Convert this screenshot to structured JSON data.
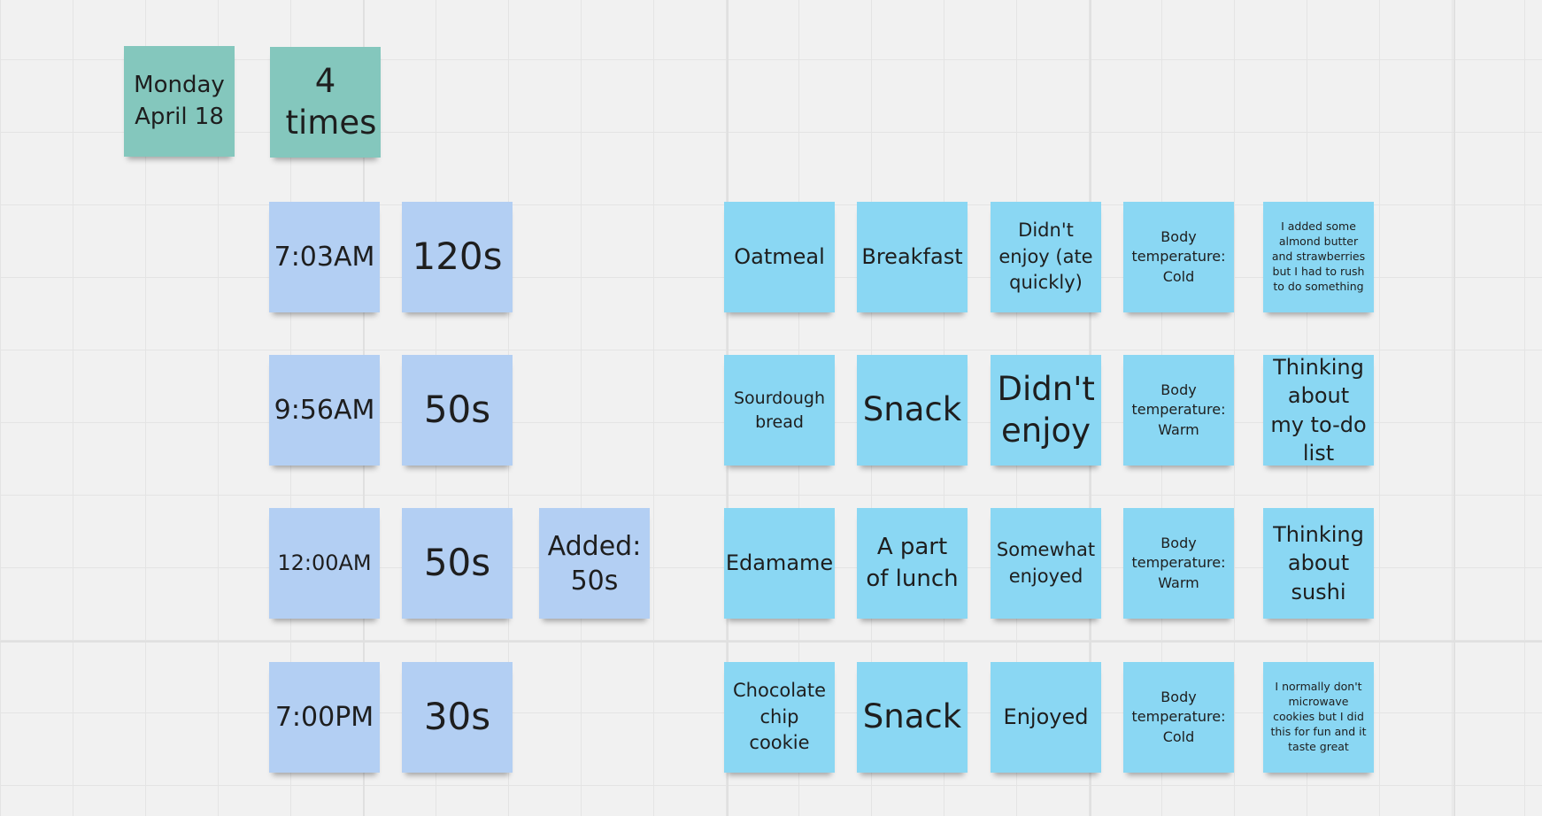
{
  "header": {
    "date_note": "Monday April 18",
    "count_note": "4 times"
  },
  "rows": [
    {
      "time": "7:03AM",
      "duration": "120s",
      "added": "",
      "food": "Oatmeal",
      "meal": "Breakfast",
      "enjoyment": "Didn't enjoy (ate quickly)",
      "temperature": "Body temperature: Cold",
      "note": "I added some almond butter and strawberries but I had to rush to do something"
    },
    {
      "time": "9:56AM",
      "duration": "50s",
      "added": "",
      "food": "Sourdough bread",
      "meal": "Snack",
      "enjoyment": "Didn't enjoy",
      "temperature": "Body temperature: Warm",
      "note": "Thinking about my to-do list"
    },
    {
      "time": "12:00AM",
      "duration": "50s",
      "added": "Added: 50s",
      "food": "Edamame",
      "meal": "A part of lunch",
      "enjoyment": "Somewhat enjoyed",
      "temperature": "Body temperature: Warm",
      "note": "Thinking about sushi"
    },
    {
      "time": "7:00PM",
      "duration": "30s",
      "added": "",
      "food": "Chocolate chip cookie",
      "meal": "Snack",
      "enjoyment": "Enjoyed",
      "temperature": "Body temperature: Cold",
      "note": "I normally don't microwave cookies but I did this for fun and  it  taste great"
    }
  ],
  "colors": {
    "canvas": "#f1f1f1",
    "grid": "#e4e4e4",
    "teal_note": "#84c7bd",
    "periwinkle_note": "#b3cff3",
    "cyan_note": "#8ad7f3"
  }
}
